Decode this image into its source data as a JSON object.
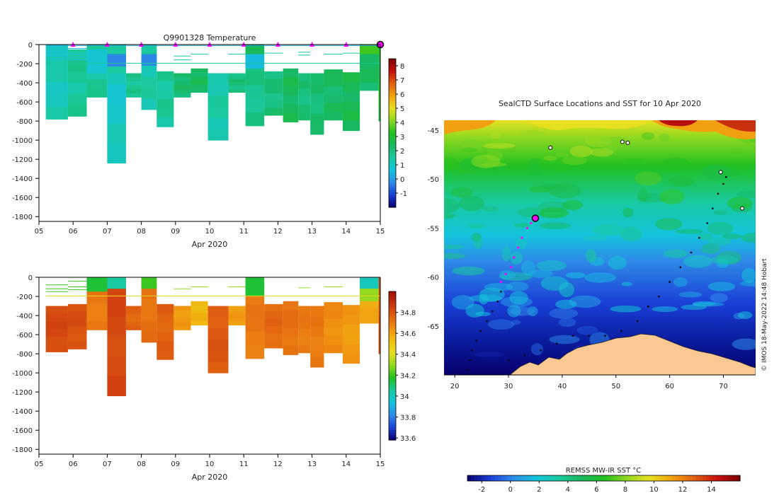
{
  "chart_data": [
    {
      "type": "heatmap",
      "title": "Q9901328  Temperature",
      "xlabel": "Apr 2020",
      "ylabel": "",
      "xlim": [
        5,
        15
      ],
      "ylim": [
        -1850,
        0
      ],
      "x_ticks": [
        "05",
        "06",
        "07",
        "08",
        "09",
        "10",
        "11",
        "12",
        "13",
        "14",
        "15"
      ],
      "y_ticks": [
        "0",
        "-200",
        "-400",
        "-600",
        "-800",
        "-1000",
        "-1200",
        "-1400",
        "-1600",
        "-1800"
      ],
      "colorbar": {
        "ticks": [
          "8",
          "7",
          "6",
          "5",
          "4",
          "3",
          "2",
          "1",
          "0",
          "-1"
        ],
        "range": [
          -2,
          8.5
        ],
        "colors": [
          "#08006e",
          "#1a3fd6",
          "#2e8be8",
          "#12c4dc",
          "#19c9a0",
          "#18b860",
          "#20c020",
          "#8cd820",
          "#e6e020",
          "#f0a010",
          "#e06010",
          "#c81010",
          "#7a0000"
        ]
      },
      "markers_day": [
        6.0,
        7.0,
        8.0,
        9.0,
        10.0,
        11.0,
        12.0,
        13.0,
        14.0
      ],
      "final_marker_day": 15.0,
      "profiles": [
        {
          "x0": 5.2,
          "x1": 5.85,
          "top": 0,
          "bottom": 780,
          "value": 1.2
        },
        {
          "x0": 5.85,
          "x1": 6.4,
          "top": 50,
          "bottom": 750,
          "value": 1.6
        },
        {
          "x0": 6.4,
          "x1": 7.0,
          "top": 0,
          "bottom": 550,
          "value": 1.6
        },
        {
          "x0": 7.0,
          "x1": 7.55,
          "top": 0,
          "bottom": 1240,
          "value": 1.0
        },
        {
          "x0": 7.55,
          "x1": 8.0,
          "top": 300,
          "bottom": 550,
          "value": 1.7
        },
        {
          "x0": 8.0,
          "x1": 8.45,
          "top": 0,
          "bottom": 680,
          "value": 1.4
        },
        {
          "x0": 8.45,
          "x1": 8.95,
          "top": 280,
          "bottom": 860,
          "value": 1.6
        },
        {
          "x0": 8.95,
          "x1": 9.45,
          "top": 300,
          "bottom": 550,
          "value": 2.2
        },
        {
          "x0": 9.45,
          "x1": 9.95,
          "top": 250,
          "bottom": 500,
          "value": 2.4
        },
        {
          "x0": 9.95,
          "x1": 10.55,
          "top": 300,
          "bottom": 1000,
          "value": 1.4
        },
        {
          "x0": 10.55,
          "x1": 11.05,
          "top": 300,
          "bottom": 500,
          "value": 2.0
        },
        {
          "x0": 11.05,
          "x1": 11.6,
          "top": 0,
          "bottom": 850,
          "value": 1.8
        },
        {
          "x0": 11.6,
          "x1": 12.15,
          "top": 280,
          "bottom": 740,
          "value": 2.0
        },
        {
          "x0": 12.15,
          "x1": 12.6,
          "top": 250,
          "bottom": 810,
          "value": 2.4
        },
        {
          "x0": 12.6,
          "x1": 12.95,
          "top": 300,
          "bottom": 790,
          "value": 2.0
        },
        {
          "x0": 12.95,
          "x1": 13.35,
          "top": 300,
          "bottom": 940,
          "value": 2.1
        },
        {
          "x0": 13.35,
          "x1": 13.9,
          "top": 260,
          "bottom": 790,
          "value": 2.3
        },
        {
          "x0": 13.9,
          "x1": 14.4,
          "top": 290,
          "bottom": 900,
          "value": 2.5
        },
        {
          "x0": 14.4,
          "x1": 14.95,
          "top": 0,
          "bottom": 480,
          "value": 2.3
        },
        {
          "x0": 14.95,
          "x1": 15.05,
          "top": 0,
          "bottom": 800,
          "value": 3.0
        }
      ],
      "surface_values": [
        {
          "x0": 6.4,
          "x1": 7.0,
          "top": 50,
          "bottom": 300,
          "value": 0.8
        },
        {
          "x0": 7.0,
          "x1": 7.55,
          "top": 0,
          "bottom": 300,
          "value": 1.5
        },
        {
          "x0": 7.0,
          "x1": 7.55,
          "top": 100,
          "bottom": 230,
          "value": -0.3
        },
        {
          "x0": 8.0,
          "x1": 8.45,
          "top": 100,
          "bottom": 220,
          "value": -0.3
        },
        {
          "x0": 8.0,
          "x1": 8.45,
          "top": 0,
          "bottom": 80,
          "value": 1.5
        },
        {
          "x0": 11.05,
          "x1": 11.6,
          "top": 0,
          "bottom": 100,
          "value": 2.5
        },
        {
          "x0": 11.05,
          "x1": 11.6,
          "top": 100,
          "bottom": 250,
          "value": 0.5
        },
        {
          "x0": 14.4,
          "x1": 14.95,
          "top": 0,
          "bottom": 100,
          "value": 3.5
        },
        {
          "x0": 14.4,
          "x1": 14.95,
          "top": 100,
          "bottom": 250,
          "value": 2.3
        }
      ],
      "thin_lines": [
        {
          "x0": 5.2,
          "x1": 5.85,
          "depth": 80,
          "value": 0.5
        },
        {
          "x0": 5.2,
          "x1": 5.85,
          "depth": 120,
          "value": 0.5
        },
        {
          "x0": 5.2,
          "x1": 5.85,
          "depth": 150,
          "value": 0.5
        },
        {
          "x0": 5.85,
          "x1": 6.4,
          "depth": 40,
          "value": 0.5
        },
        {
          "x0": 5.85,
          "x1": 6.4,
          "depth": 100,
          "value": 0.5
        },
        {
          "x0": 5.85,
          "x1": 6.4,
          "depth": 130,
          "value": 0.5
        },
        {
          "x0": 5.85,
          "x1": 6.4,
          "depth": 160,
          "value": 0.5
        },
        {
          "x0": 5.2,
          "x1": 15.0,
          "depth": 195,
          "value": 1.6
        },
        {
          "x0": 5.2,
          "x1": 15.0,
          "depth": 10,
          "value": 0.2
        },
        {
          "x0": 8.95,
          "x1": 9.45,
          "depth": 120,
          "value": 1.5
        },
        {
          "x0": 8.95,
          "x1": 9.45,
          "depth": 160,
          "value": 1.5
        },
        {
          "x0": 9.45,
          "x1": 9.95,
          "depth": 100,
          "value": 1.5
        },
        {
          "x0": 10.55,
          "x1": 11.05,
          "depth": 100,
          "value": 1.5
        },
        {
          "x0": 11.6,
          "x1": 12.15,
          "depth": 90,
          "value": 1.5
        },
        {
          "x0": 12.6,
          "x1": 12.95,
          "depth": 80,
          "value": 1.5
        },
        {
          "x0": 12.6,
          "x1": 12.95,
          "depth": 110,
          "value": 1.5
        },
        {
          "x0": 13.35,
          "x1": 13.9,
          "depth": 100,
          "value": 1.5
        },
        {
          "x0": 13.9,
          "x1": 14.4,
          "depth": 90,
          "value": 1.5
        }
      ]
    },
    {
      "type": "heatmap",
      "title": "",
      "xlabel": "Apr 2020",
      "ylabel": "",
      "xlim": [
        5,
        15
      ],
      "ylim": [
        -1850,
        0
      ],
      "x_ticks": [
        "05",
        "06",
        "07",
        "08",
        "09",
        "10",
        "11",
        "12",
        "13",
        "14",
        "15"
      ],
      "y_ticks": [
        "0",
        "-200",
        "-400",
        "-600",
        "-800",
        "-1000",
        "-1200",
        "-1400",
        "-1600",
        "-1800"
      ],
      "colorbar": {
        "ticks": [
          "34.8",
          "34.6",
          "34.4",
          "34.2",
          "34",
          "33.8",
          "33.6"
        ],
        "range": [
          33.58,
          35.0
        ],
        "colors": [
          "#08006e",
          "#1a3fd6",
          "#2e8be8",
          "#12c4dc",
          "#19c9a0",
          "#20c020",
          "#8cd820",
          "#e6e020",
          "#f0c010",
          "#f09010",
          "#e06010",
          "#c83010",
          "#a01008"
        ]
      },
      "profiles": [
        {
          "x0": 5.2,
          "x1": 5.85,
          "top": 300,
          "bottom": 780,
          "value": 34.82
        },
        {
          "x0": 5.85,
          "x1": 6.4,
          "top": 280,
          "bottom": 750,
          "value": 34.8
        },
        {
          "x0": 6.4,
          "x1": 7.0,
          "top": 0,
          "bottom": 550,
          "value": 34.7
        },
        {
          "x0": 7.0,
          "x1": 7.55,
          "top": 0,
          "bottom": 1240,
          "value": 34.82
        },
        {
          "x0": 7.55,
          "x1": 8.0,
          "top": 300,
          "bottom": 550,
          "value": 34.75
        },
        {
          "x0": 8.0,
          "x1": 8.45,
          "top": 0,
          "bottom": 680,
          "value": 34.72
        },
        {
          "x0": 8.45,
          "x1": 8.95,
          "top": 280,
          "bottom": 860,
          "value": 34.76
        },
        {
          "x0": 8.95,
          "x1": 9.45,
          "top": 300,
          "bottom": 550,
          "value": 34.62
        },
        {
          "x0": 9.45,
          "x1": 9.95,
          "top": 250,
          "bottom": 500,
          "value": 34.55
        },
        {
          "x0": 9.95,
          "x1": 10.55,
          "top": 300,
          "bottom": 1000,
          "value": 34.78
        },
        {
          "x0": 10.55,
          "x1": 11.05,
          "top": 300,
          "bottom": 500,
          "value": 34.62
        },
        {
          "x0": 11.05,
          "x1": 11.6,
          "top": 0,
          "bottom": 850,
          "value": 34.7
        },
        {
          "x0": 11.6,
          "x1": 12.15,
          "top": 280,
          "bottom": 740,
          "value": 34.74
        },
        {
          "x0": 12.15,
          "x1": 12.6,
          "top": 250,
          "bottom": 810,
          "value": 34.72
        },
        {
          "x0": 12.6,
          "x1": 12.95,
          "top": 300,
          "bottom": 790,
          "value": 34.7
        },
        {
          "x0": 12.95,
          "x1": 13.35,
          "top": 300,
          "bottom": 940,
          "value": 34.7
        },
        {
          "x0": 13.35,
          "x1": 13.9,
          "top": 260,
          "bottom": 790,
          "value": 34.65
        },
        {
          "x0": 13.9,
          "x1": 14.4,
          "top": 290,
          "bottom": 900,
          "value": 34.62
        },
        {
          "x0": 14.4,
          "x1": 14.95,
          "top": 0,
          "bottom": 480,
          "value": 34.58
        },
        {
          "x0": 14.95,
          "x1": 15.05,
          "top": 0,
          "bottom": 800,
          "value": 34.8
        }
      ],
      "surface_values": [
        {
          "x0": 6.4,
          "x1": 7.0,
          "top": 0,
          "bottom": 150,
          "value": 34.15
        },
        {
          "x0": 7.0,
          "x1": 7.55,
          "top": 0,
          "bottom": 120,
          "value": 34.05
        },
        {
          "x0": 8.0,
          "x1": 8.45,
          "top": 0,
          "bottom": 120,
          "value": 34.2
        },
        {
          "x0": 11.05,
          "x1": 11.6,
          "top": 0,
          "bottom": 200,
          "value": 34.15
        },
        {
          "x0": 14.4,
          "x1": 14.95,
          "top": 0,
          "bottom": 120,
          "value": 34.0
        },
        {
          "x0": 14.4,
          "x1": 14.95,
          "top": 120,
          "bottom": 250,
          "value": 34.3
        }
      ],
      "thin_lines": [
        {
          "x0": 5.2,
          "x1": 5.85,
          "depth": 80,
          "value": 34.2
        },
        {
          "x0": 5.2,
          "x1": 5.85,
          "depth": 120,
          "value": 34.2
        },
        {
          "x0": 5.2,
          "x1": 5.85,
          "depth": 150,
          "value": 34.2
        },
        {
          "x0": 5.85,
          "x1": 6.4,
          "depth": 40,
          "value": 34.2
        },
        {
          "x0": 5.85,
          "x1": 6.4,
          "depth": 100,
          "value": 34.2
        },
        {
          "x0": 5.85,
          "x1": 6.4,
          "depth": 130,
          "value": 34.2
        },
        {
          "x0": 5.2,
          "x1": 15.0,
          "depth": 195,
          "value": 34.45
        },
        {
          "x0": 8.95,
          "x1": 9.45,
          "depth": 120,
          "value": 34.3
        },
        {
          "x0": 9.45,
          "x1": 9.95,
          "depth": 100,
          "value": 34.3
        },
        {
          "x0": 10.55,
          "x1": 11.05,
          "depth": 100,
          "value": 34.3
        },
        {
          "x0": 12.6,
          "x1": 12.95,
          "depth": 110,
          "value": 34.3
        },
        {
          "x0": 13.35,
          "x1": 13.9,
          "depth": 100,
          "value": 34.3
        }
      ]
    },
    {
      "type": "heatmap",
      "title": "SealCTD Surface Locations and SST for 10 Apr 2020",
      "xlabel": "",
      "ylabel": "",
      "xlim": [
        18,
        76
      ],
      "ylim": [
        -70,
        -44
      ],
      "x_ticks": [
        "20",
        "30",
        "40",
        "50",
        "60",
        "70"
      ],
      "y_ticks": [
        "-45",
        "-50",
        "-55",
        "-60",
        "-65"
      ],
      "side_note": "© IMOS 18-May-2022 14:48 Hobart",
      "colorbar": {
        "label": "REMSS MW-IR SST °C",
        "ticks": [
          "-2",
          "0",
          "2",
          "4",
          "6",
          "8",
          "10",
          "12",
          "14"
        ],
        "range": [
          -3,
          16
        ],
        "colors": [
          "#08006e",
          "#1a3fd6",
          "#2e8be8",
          "#12c4dc",
          "#19c9a0",
          "#18b860",
          "#20c020",
          "#8cd820",
          "#e6e020",
          "#f0a010",
          "#e06010",
          "#c81010",
          "#7a0000"
        ]
      },
      "track_black": [
        [
          22.5,
          -69.5
        ],
        [
          22.8,
          -68.5
        ],
        [
          23.2,
          -67.5
        ],
        [
          24.0,
          -66.5
        ],
        [
          24.8,
          -65.5
        ],
        [
          26.0,
          -64.5
        ],
        [
          27.0,
          -63.5
        ],
        [
          28.0,
          -62.5
        ],
        [
          28.6,
          -61.5
        ],
        [
          30.0,
          -68.5
        ],
        [
          33.0,
          -68.0
        ],
        [
          36.0,
          -67.5
        ],
        [
          39.0,
          -66.8
        ],
        [
          42.0,
          -66.0
        ],
        [
          45.0,
          -66.0
        ],
        [
          48.0,
          -66.0
        ],
        [
          51.0,
          -65.5
        ],
        [
          54.0,
          -64.5
        ],
        [
          56.0,
          -63.0
        ],
        [
          58.0,
          -62.0
        ],
        [
          60.0,
          -60.5
        ],
        [
          62.0,
          -59.0
        ],
        [
          64.0,
          -57.5
        ],
        [
          65.5,
          -56.0
        ],
        [
          67.0,
          -54.5
        ],
        [
          68.0,
          -53.0
        ],
        [
          69.0,
          -51.5
        ],
        [
          70.0,
          -50.5
        ],
        [
          70.5,
          -49.8
        ]
      ],
      "track_magenta": [
        [
          28.6,
          -60.5
        ],
        [
          29.5,
          -59.7
        ],
        [
          30.5,
          -59.0
        ],
        [
          31.0,
          -58.0
        ],
        [
          31.8,
          -57.0
        ],
        [
          32.5,
          -56.0
        ],
        [
          33.5,
          -55.0
        ],
        [
          34.2,
          -54.5
        ],
        [
          35.0,
          -54.0
        ]
      ],
      "current_position": [
        35.0,
        -54.0
      ],
      "islands": [
        [
          37.8,
          -46.8
        ],
        [
          51.2,
          -46.2
        ],
        [
          52.2,
          -46.3
        ],
        [
          69.5,
          -49.3
        ],
        [
          73.5,
          -53.0
        ]
      ]
    }
  ]
}
